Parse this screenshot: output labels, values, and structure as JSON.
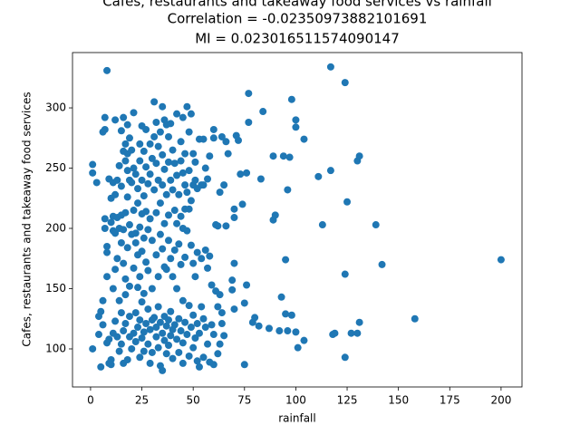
{
  "chart_data": {
    "type": "scatter",
    "title": "Cafes, restaurants and takeaway food services vs rainfall",
    "subtitles": [
      "Correlation = -0.02350973882101691",
      "MI = 0.023016511574090147"
    ],
    "xlabel": "rainfall",
    "ylabel": "Cafes, restaurants and takeaway food services",
    "color": "#1f77b4",
    "xlim": [
      -8.8,
      210.2
    ],
    "ylim": [
      68.4,
      345.9
    ],
    "xticks": [
      0,
      25,
      50,
      75,
      100,
      125,
      150,
      175,
      200
    ],
    "yticks": [
      100,
      150,
      200,
      250,
      300
    ],
    "x": [
      1,
      1,
      1,
      3,
      4,
      4,
      5,
      5,
      6,
      6,
      6,
      7,
      7,
      7,
      7,
      8,
      8,
      8,
      8,
      9,
      9,
      9,
      10,
      10,
      10,
      10,
      11,
      11,
      11,
      11,
      11,
      12,
      12,
      12,
      12,
      12,
      13,
      13,
      13,
      13,
      14,
      14,
      14,
      14,
      15,
      15,
      15,
      15,
      15,
      15,
      16,
      16,
      16,
      16,
      16,
      16,
      17,
      17,
      17,
      17,
      17,
      17,
      18,
      18,
      18,
      18,
      18,
      18,
      19,
      19,
      19,
      19,
      19,
      19,
      20,
      20,
      20,
      20,
      21,
      21,
      21,
      21,
      21,
      22,
      22,
      22,
      22,
      22,
      23,
      23,
      23,
      23,
      23,
      24,
      24,
      24,
      24,
      24,
      24,
      25,
      25,
      25,
      25,
      25,
      25,
      26,
      26,
      26,
      26,
      26,
      26,
      27,
      27,
      27,
      27,
      27,
      28,
      28,
      28,
      28,
      28,
      29,
      29,
      29,
      29,
      29,
      30,
      30,
      30,
      30,
      30,
      31,
      31,
      31,
      31,
      32,
      32,
      32,
      32,
      32,
      32,
      33,
      33,
      33,
      33,
      33,
      34,
      34,
      34,
      34,
      34,
      35,
      35,
      35,
      35,
      35,
      35,
      36,
      36,
      36,
      36,
      36,
      36,
      37,
      37,
      37,
      37,
      37,
      38,
      38,
      38,
      38,
      38,
      38,
      39,
      39,
      39,
      39,
      39,
      40,
      40,
      40,
      40,
      40,
      41,
      41,
      41,
      41,
      42,
      42,
      42,
      42,
      42,
      43,
      43,
      43,
      43,
      44,
      44,
      44,
      44,
      44,
      45,
      45,
      45,
      45,
      45,
      45,
      46,
      46,
      46,
      46,
      46,
      47,
      47,
      47,
      47,
      48,
      48,
      48,
      48,
      48,
      49,
      49,
      49,
      49,
      50,
      50,
      50,
      50,
      50,
      51,
      51,
      51,
      51,
      52,
      52,
      52,
      52,
      53,
      53,
      53,
      54,
      54,
      54,
      55,
      55,
      55,
      55,
      56,
      56,
      56,
      57,
      57,
      57,
      58,
      58,
      58,
      59,
      59,
      60,
      60,
      60,
      60,
      61,
      61,
      62,
      62,
      62,
      63,
      63,
      63,
      64,
      64,
      64,
      65,
      65,
      66,
      66,
      67,
      69,
      69,
      70,
      70,
      70,
      70,
      71,
      72,
      73,
      74,
      75,
      75,
      76,
      76,
      77,
      77,
      79,
      80,
      82,
      83,
      84,
      87,
      89,
      89,
      90,
      92,
      93,
      94,
      95,
      95,
      96,
      96,
      97,
      98,
      98,
      100,
      100,
      100,
      101,
      104,
      104,
      111,
      113,
      117,
      117,
      118,
      119,
      124,
      124,
      124,
      125,
      127,
      130,
      130,
      131,
      131,
      139,
      142,
      158,
      200,
      8
    ],
    "values": [
      246,
      253,
      100,
      238,
      112,
      127,
      131,
      85,
      280,
      140,
      120,
      292,
      282,
      208,
      200,
      185,
      180,
      160,
      105,
      241,
      108,
      88,
      225,
      205,
      91,
      87,
      238,
      210,
      198,
      150,
      113,
      290,
      228,
      196,
      166,
      123,
      240,
      209,
      175,
      110,
      252,
      200,
      140,
      98,
      281,
      235,
      211,
      188,
      130,
      104,
      292,
      264,
      199,
      171,
      115,
      88,
      270,
      256,
      213,
      158,
      145,
      121,
      286,
      262,
      248,
      226,
      184,
      91,
      275,
      240,
      203,
      152,
      127,
      110,
      265,
      238,
      195,
      100,
      296,
      250,
      215,
      167,
      113,
      245,
      196,
      188,
      130,
      106,
      233,
      221,
      178,
      151,
      118,
      270,
      256,
      201,
      160,
      124,
      93,
      285,
      240,
      212,
      181,
      139,
      109,
      264,
      227,
      192,
      146,
      114,
      98,
      282,
      251,
      214,
      172,
      121,
      237,
      199,
      165,
      133,
      104,
      270,
      245,
      208,
      116,
      88,
      258,
      190,
      150,
      124,
      97,
      305,
      276,
      232,
      126,
      288,
      254,
      213,
      178,
      118,
      110,
      268,
      240,
      160,
      135,
      101,
      280,
      221,
      195,
      122,
      86,
      301,
      261,
      236,
      183,
      113,
      82,
      290,
      249,
      204,
      168,
      127,
      107,
      286,
      228,
      166,
      119,
      96,
      276,
      255,
      211,
      190,
      124,
      103,
      287,
      240,
      175,
      131,
      111,
      265,
      232,
      160,
      116,
      92,
      254,
      215,
      182,
      120,
      295,
      244,
      204,
      150,
      108,
      228,
      187,
      125,
      97,
      272,
      256,
      210,
      170,
      115,
      292,
      246,
      200,
      140,
      105,
      88,
      262,
      236,
      216,
      176,
      122,
      301,
      230,
      198,
      112,
      280,
      248,
      216,
      136,
      94,
      295,
      223,
      186,
      118,
      262,
      236,
      171,
      128,
      101,
      255,
      240,
      160,
      109,
      233,
      180,
      121,
      90,
      274,
      113,
      85,
      236,
      175,
      135,
      274,
      236,
      93,
      125,
      250,
      182,
      118,
      241,
      167,
      104,
      260,
      177,
      89,
      153,
      120,
      282,
      275,
      87,
      112,
      148,
      203,
      202,
      96,
      135,
      230,
      104,
      145,
      276,
      130,
      121,
      236,
      111,
      272,
      202,
      262,
      157,
      149,
      216,
      209,
      171,
      133,
      277,
      273,
      245,
      220,
      138,
      87,
      246,
      153,
      312,
      288,
      122,
      126,
      119,
      241,
      297,
      117,
      260,
      207,
      211,
      115,
      143,
      260,
      174,
      129,
      232,
      115,
      259,
      307,
      128,
      290,
      284,
      114,
      101,
      274,
      107,
      243,
      203,
      248,
      334,
      112,
      113,
      321,
      162,
      93,
      222,
      113,
      256,
      113,
      260,
      122,
      203,
      170,
      125,
      174,
      331
    ]
  }
}
